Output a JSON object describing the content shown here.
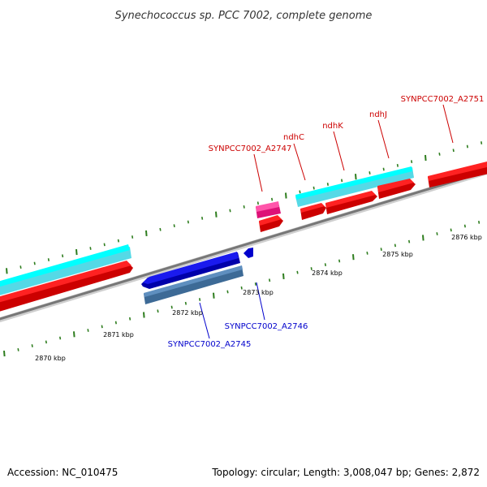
{
  "title": "Synechococcus sp. PCC 7002, complete genome",
  "footer": {
    "accession": "Accession: NC_010475",
    "summary": "Topology: circular; Length: 3,008,047 bp; Genes: 2,872"
  },
  "colors": {
    "backbone": "#888888",
    "tick": "#2e7d1e",
    "cds_forward": "#ff0000",
    "cds_reverse": "#0000ee",
    "gene_forward": "#00ffff",
    "gene_reverse": "#4a7fb0",
    "rna": "#ff3399",
    "label_forward": "#cc0000",
    "label_reverse": "#0000cc"
  },
  "scale": {
    "unit": "kbp",
    "labels": [
      "2870 kbp",
      "2871 kbp",
      "2872 kbp",
      "2873 kbp",
      "2874 kbp",
      "2875 kbp",
      "2876 kbp"
    ]
  },
  "gene_labels": {
    "forward": [
      "SYNPCC7002_A2747",
      "ndhC",
      "ndhK",
      "ndhJ",
      "SYNPCC7002_A2751"
    ],
    "reverse": [
      "SYNPCC7002_A2745",
      "SYNPCC7002_A2746"
    ]
  }
}
